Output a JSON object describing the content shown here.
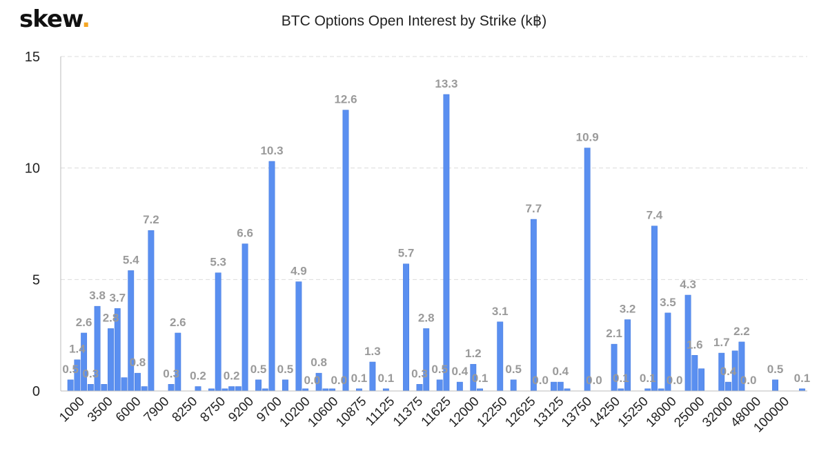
{
  "brand": {
    "name": "skew",
    "dot": "."
  },
  "colors": {
    "bar": "#5a8ff0",
    "bar_dark": "#3f76de",
    "grid": "#dcdcdc",
    "label": "#9a9a9a",
    "accent": "#f5a623"
  },
  "chart_data": {
    "type": "bar",
    "title": "BTC Options Open Interest by Strike (k฿)",
    "xlabel": "",
    "ylabel": "",
    "ylim": [
      0,
      15
    ],
    "yticks": [
      0,
      5,
      10,
      15
    ],
    "grid": true,
    "legend": "none",
    "x_tick_labels": [
      "1000",
      "3500",
      "6000",
      "7900",
      "8250",
      "8750",
      "9200",
      "9700",
      "10200",
      "10600",
      "10875",
      "11125",
      "11375",
      "11625",
      "12000",
      "12250",
      "12625",
      "13125",
      "13750",
      "14250",
      "15250",
      "18000",
      "25000",
      "32000",
      "48000",
      "100000"
    ],
    "values": [
      0.5,
      1.4,
      2.6,
      0.3,
      3.8,
      0.3,
      2.8,
      3.7,
      0.6,
      5.4,
      0.8,
      0.2,
      7.2,
      0.0,
      0.0,
      0.3,
      2.6,
      0.0,
      0.0,
      0.2,
      0.0,
      0.1,
      5.3,
      0.1,
      0.2,
      0.2,
      6.6,
      0.0,
      0.5,
      0.1,
      10.3,
      0.0,
      0.5,
      0.0,
      4.9,
      0.1,
      0.0,
      0.8,
      0.1,
      0.1,
      0.0,
      12.6,
      0.0,
      0.1,
      0.0,
      1.3,
      0.0,
      0.1,
      0.0,
      0.0,
      5.7,
      0.0,
      0.3,
      2.8,
      0.0,
      0.5,
      13.3,
      0.0,
      0.4,
      0.0,
      1.2,
      0.1,
      0.0,
      0.0,
      3.1,
      0.0,
      0.5,
      0.0,
      0.0,
      7.7,
      0.0,
      0.0,
      0.4,
      0.4,
      0.1,
      0.0,
      0.0,
      10.9,
      0.0,
      0.0,
      0.0,
      2.1,
      0.1,
      3.2,
      0.0,
      0.0,
      0.1,
      7.4,
      0.1,
      3.5,
      0.0,
      0.0,
      4.3,
      1.6,
      1.0,
      0.0,
      0.0,
      1.7,
      0.4,
      1.8,
      2.2,
      0.0,
      0.0,
      0.0,
      0.0,
      0.5,
      0.0,
      0.0,
      0.0,
      0.1
    ],
    "data_labels": [
      {
        "index": 0,
        "text": "0.5"
      },
      {
        "index": 1,
        "text": "1.4"
      },
      {
        "index": 2,
        "text": "2.6"
      },
      {
        "index": 3,
        "text": "0.3"
      },
      {
        "index": 4,
        "text": "3.8"
      },
      {
        "index": 6,
        "text": "2.8"
      },
      {
        "index": 7,
        "text": "3.7"
      },
      {
        "index": 9,
        "text": "5.4"
      },
      {
        "index": 10,
        "text": "0.8"
      },
      {
        "index": 12,
        "text": "7.2"
      },
      {
        "index": 15,
        "text": "0.3"
      },
      {
        "index": 16,
        "text": "2.6"
      },
      {
        "index": 19,
        "text": "0.2"
      },
      {
        "index": 22,
        "text": "5.3"
      },
      {
        "index": 24,
        "text": "0.2"
      },
      {
        "index": 26,
        "text": "6.6"
      },
      {
        "index": 28,
        "text": "0.5"
      },
      {
        "index": 30,
        "text": "10.3"
      },
      {
        "index": 32,
        "text": "0.5"
      },
      {
        "index": 34,
        "text": "4.9"
      },
      {
        "index": 36,
        "text": "0.0"
      },
      {
        "index": 37,
        "text": "0.8"
      },
      {
        "index": 40,
        "text": "0.0"
      },
      {
        "index": 41,
        "text": "12.6"
      },
      {
        "index": 43,
        "text": "0.1"
      },
      {
        "index": 45,
        "text": "1.3"
      },
      {
        "index": 47,
        "text": "0.1"
      },
      {
        "index": 50,
        "text": "5.7"
      },
      {
        "index": 52,
        "text": "0.3"
      },
      {
        "index": 53,
        "text": "2.8"
      },
      {
        "index": 55,
        "text": "0.5"
      },
      {
        "index": 56,
        "text": "13.3"
      },
      {
        "index": 58,
        "text": "0.4"
      },
      {
        "index": 60,
        "text": "1.2"
      },
      {
        "index": 61,
        "text": "0.1"
      },
      {
        "index": 64,
        "text": "3.1"
      },
      {
        "index": 66,
        "text": "0.5"
      },
      {
        "index": 69,
        "text": "7.7"
      },
      {
        "index": 70,
        "text": "0.0"
      },
      {
        "index": 73,
        "text": "0.4"
      },
      {
        "index": 77,
        "text": "10.9"
      },
      {
        "index": 78,
        "text": "0.0"
      },
      {
        "index": 81,
        "text": "2.1"
      },
      {
        "index": 82,
        "text": "0.1"
      },
      {
        "index": 83,
        "text": "3.2"
      },
      {
        "index": 86,
        "text": "0.1"
      },
      {
        "index": 87,
        "text": "7.4"
      },
      {
        "index": 89,
        "text": "3.5"
      },
      {
        "index": 90,
        "text": "0.0"
      },
      {
        "index": 92,
        "text": "4.3"
      },
      {
        "index": 93,
        "text": "1.6"
      },
      {
        "index": 97,
        "text": "1.7"
      },
      {
        "index": 98,
        "text": "0.4"
      },
      {
        "index": 100,
        "text": "2.2"
      },
      {
        "index": 101,
        "text": "0.0"
      },
      {
        "index": 105,
        "text": "0.5"
      },
      {
        "index": 109,
        "text": "0.1"
      }
    ]
  }
}
